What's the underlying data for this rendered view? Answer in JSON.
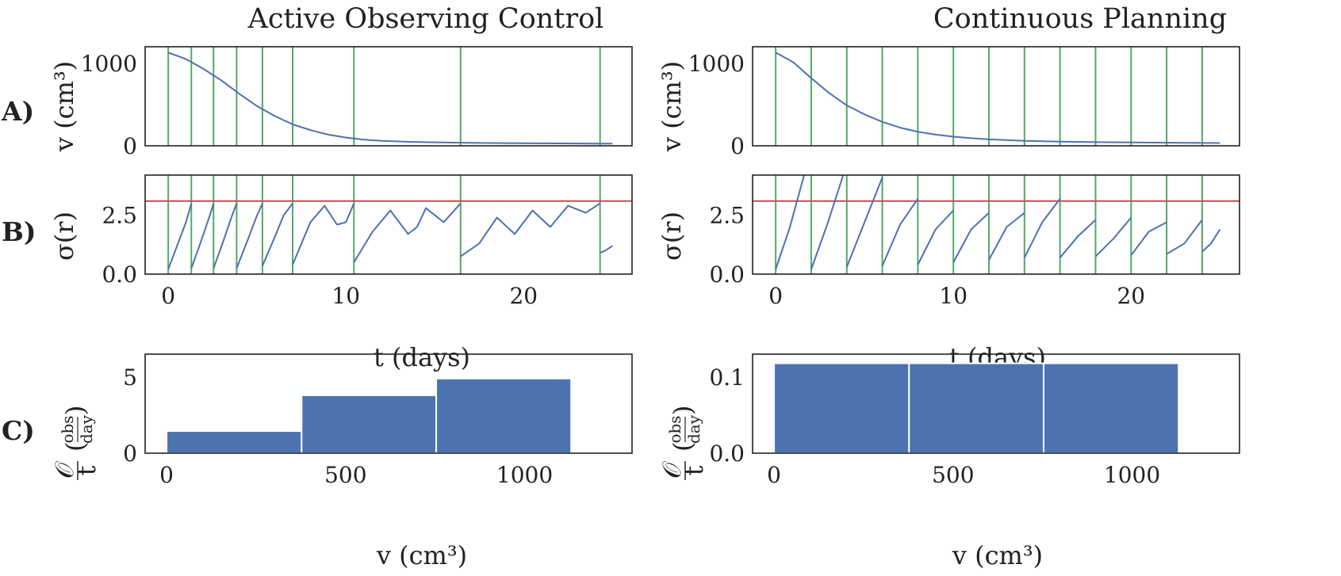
{
  "row_labels": [
    "A)",
    "B)",
    "C)"
  ],
  "columns": [
    {
      "title": "Active Observing Control",
      "observation_times": [
        0,
        1.3,
        2.55,
        3.85,
        5.3,
        7.0,
        10.45,
        16.45,
        24.3
      ],
      "ylabel_a": "v (cm³)",
      "ylabel_b": "σ(r)",
      "xlabel_b": "t (days)",
      "xlabel_c": "v (cm³)",
      "ylabel_c_sym": "𝒪",
      "ylabel_c_den": "t",
      "ylabel_c_unit_num": "obs",
      "ylabel_c_unit_den": "day"
    },
    {
      "title": "Continuous Planning",
      "observation_times": [
        0,
        2,
        4,
        6,
        8,
        10,
        12,
        14,
        16,
        18,
        20,
        22,
        24
      ],
      "ylabel_a": "v (cm³)",
      "ylabel_b": "σ(r)",
      "xlabel_b": "t (days)",
      "xlabel_c": "v (cm³)",
      "ylabel_c_sym": "𝒪",
      "ylabel_c_den": "t",
      "ylabel_c_unit_num": "obs",
      "ylabel_c_unit_den": "day"
    }
  ],
  "chart_data": [
    {
      "panel": "A",
      "column": "Active Observing Control",
      "type": "line",
      "xlim": [
        -1.3,
        26.1
      ],
      "ylim": [
        0,
        1200
      ],
      "yticks": [
        0,
        1000
      ],
      "ytick_labels": [
        "0",
        "1000"
      ],
      "series": [
        {
          "color": "#4c72b0",
          "x": [
            0,
            1,
            2,
            3,
            4,
            5,
            6,
            7,
            8,
            9,
            10,
            11,
            12,
            14,
            16,
            18,
            20,
            22,
            24,
            25
          ],
          "values": [
            1130,
            1050,
            930,
            790,
            630,
            480,
            360,
            260,
            190,
            135,
            100,
            75,
            60,
            45,
            38,
            34,
            31,
            29,
            27,
            26
          ]
        }
      ],
      "vlines": {
        "source": "observation_times",
        "color": "#55a868"
      }
    },
    {
      "panel": "B",
      "column": "Active Observing Control",
      "type": "line",
      "xlim": [
        -1.3,
        26.1
      ],
      "ylim": [
        0,
        4.2
      ],
      "xticks": [
        0,
        10,
        20
      ],
      "xtick_labels": [
        "0",
        "10",
        "20"
      ],
      "yticks": [
        0,
        2.5
      ],
      "ytick_labels": [
        "0.0",
        "2.5"
      ],
      "threshold": {
        "value": 3.1,
        "color": "#c44e52"
      },
      "segments": [
        {
          "x": [
            0,
            0.5,
            1.0,
            1.3
          ],
          "values": [
            0.2,
            1.2,
            2.2,
            3.0
          ]
        },
        {
          "x": [
            1.3,
            1.8,
            2.3,
            2.55
          ],
          "values": [
            0.25,
            1.3,
            2.4,
            3.0
          ]
        },
        {
          "x": [
            2.55,
            3.1,
            3.6,
            3.85
          ],
          "values": [
            0.25,
            1.4,
            2.5,
            3.0
          ]
        },
        {
          "x": [
            3.85,
            4.4,
            5.0,
            5.3
          ],
          "values": [
            0.25,
            1.3,
            2.5,
            3.0
          ]
        },
        {
          "x": [
            5.3,
            5.9,
            6.5,
            7.0
          ],
          "values": [
            0.35,
            1.4,
            2.5,
            3.0
          ]
        },
        {
          "x": [
            7.0,
            8.0,
            8.8,
            9.5,
            10.0,
            10.45
          ],
          "values": [
            0.4,
            2.2,
            2.9,
            2.1,
            2.2,
            3.0
          ]
        },
        {
          "x": [
            10.45,
            11.5,
            12.5,
            13.5,
            14.0,
            14.5,
            15.5,
            16.45
          ],
          "values": [
            0.5,
            1.8,
            2.7,
            1.7,
            2.0,
            2.8,
            2.2,
            3.0
          ]
        },
        {
          "x": [
            16.45,
            17.5,
            18.5,
            19.5,
            20.5,
            21.5,
            22.5,
            23.5,
            24.3
          ],
          "values": [
            0.75,
            1.3,
            2.4,
            1.7,
            2.7,
            2.0,
            2.9,
            2.6,
            3.0
          ]
        },
        {
          "x": [
            24.3,
            24.6,
            25.0
          ],
          "values": [
            0.9,
            1.0,
            1.2
          ]
        }
      ],
      "xlabel": "t (days)"
    },
    {
      "panel": "C",
      "column": "Active Observing Control",
      "type": "bar",
      "xlim": [
        -60,
        1300
      ],
      "ylim": [
        0,
        6.5
      ],
      "xticks": [
        0,
        500,
        1000
      ],
      "xtick_labels": [
        "0",
        "500",
        "1000"
      ],
      "yticks": [
        0,
        5
      ],
      "ytick_labels": [
        "0",
        "5"
      ],
      "bins": [
        [
          0,
          377
        ],
        [
          377,
          753
        ],
        [
          753,
          1130
        ]
      ],
      "values": [
        1.45,
        3.8,
        4.9
      ],
      "xlabel": "v (cm³)"
    },
    {
      "panel": "A",
      "column": "Continuous Planning",
      "type": "line",
      "xlim": [
        -1.3,
        26.1
      ],
      "ylim": [
        0,
        1200
      ],
      "yticks": [
        0,
        1000
      ],
      "ytick_labels": [
        "0",
        "1000"
      ],
      "series": [
        {
          "color": "#4c72b0",
          "x": [
            0,
            1,
            2,
            3,
            4,
            5,
            6,
            7,
            8,
            9,
            10,
            11,
            12,
            14,
            16,
            18,
            20,
            22,
            24,
            25
          ],
          "values": [
            1130,
            1010,
            820,
            640,
            490,
            380,
            290,
            220,
            170,
            135,
            110,
            92,
            78,
            60,
            50,
            44,
            40,
            37,
            35,
            34
          ]
        }
      ],
      "vlines": {
        "source": "observation_times",
        "color": "#55a868"
      }
    },
    {
      "panel": "B",
      "column": "Continuous Planning",
      "type": "line",
      "xlim": [
        -1.3,
        26.1
      ],
      "ylim": [
        0,
        4.2
      ],
      "xticks": [
        0,
        10,
        20
      ],
      "xtick_labels": [
        "0",
        "10",
        "20"
      ],
      "yticks": [
        0,
        2.5
      ],
      "ytick_labels": [
        "0.0",
        "2.5"
      ],
      "threshold": {
        "value": 3.1,
        "color": "#c44e52"
      },
      "segments": [
        {
          "x": [
            0,
            0.8,
            1.6
          ],
          "values": [
            0.2,
            2.0,
            4.2
          ]
        },
        {
          "x": [
            2,
            2.9,
            3.8
          ],
          "values": [
            0.2,
            2.1,
            4.2
          ]
        },
        {
          "x": [
            4,
            5.0,
            6.0
          ],
          "values": [
            0.3,
            2.2,
            4.1
          ]
        },
        {
          "x": [
            6,
            7.0,
            8.0
          ],
          "values": [
            0.35,
            2.1,
            3.2
          ]
        },
        {
          "x": [
            8,
            9.0,
            10.0
          ],
          "values": [
            0.4,
            1.9,
            2.7
          ]
        },
        {
          "x": [
            10,
            11.0,
            12.0
          ],
          "values": [
            0.5,
            1.9,
            2.6
          ]
        },
        {
          "x": [
            12,
            13.0,
            14.0
          ],
          "values": [
            0.6,
            2.0,
            2.6
          ]
        },
        {
          "x": [
            14,
            15.0,
            16.0
          ],
          "values": [
            0.7,
            2.2,
            3.2
          ]
        },
        {
          "x": [
            16,
            17.0,
            18.0
          ],
          "values": [
            0.7,
            1.6,
            2.3
          ]
        },
        {
          "x": [
            18,
            19.0,
            20.0
          ],
          "values": [
            0.75,
            1.5,
            2.4
          ]
        },
        {
          "x": [
            20,
            21.0,
            22.0
          ],
          "values": [
            0.8,
            1.8,
            2.2
          ]
        },
        {
          "x": [
            22,
            23.0,
            24.0
          ],
          "values": [
            0.85,
            1.3,
            2.3
          ]
        },
        {
          "x": [
            24,
            24.5,
            25.0
          ],
          "values": [
            0.95,
            1.3,
            1.9
          ]
        }
      ],
      "xlabel": "t (days)"
    },
    {
      "panel": "C",
      "column": "Continuous Planning",
      "type": "bar",
      "xlim": [
        -60,
        1300
      ],
      "ylim": [
        0,
        0.13
      ],
      "xticks": [
        0,
        500,
        1000
      ],
      "xtick_labels": [
        "0",
        "500",
        "1000"
      ],
      "yticks": [
        0,
        0.1
      ],
      "ytick_labels": [
        "0.0",
        "0.1"
      ],
      "bins": [
        [
          0,
          377
        ],
        [
          377,
          753
        ],
        [
          753,
          1130
        ]
      ],
      "values": [
        0.118,
        0.118,
        0.118
      ],
      "xlabel": "v (cm³)"
    }
  ]
}
